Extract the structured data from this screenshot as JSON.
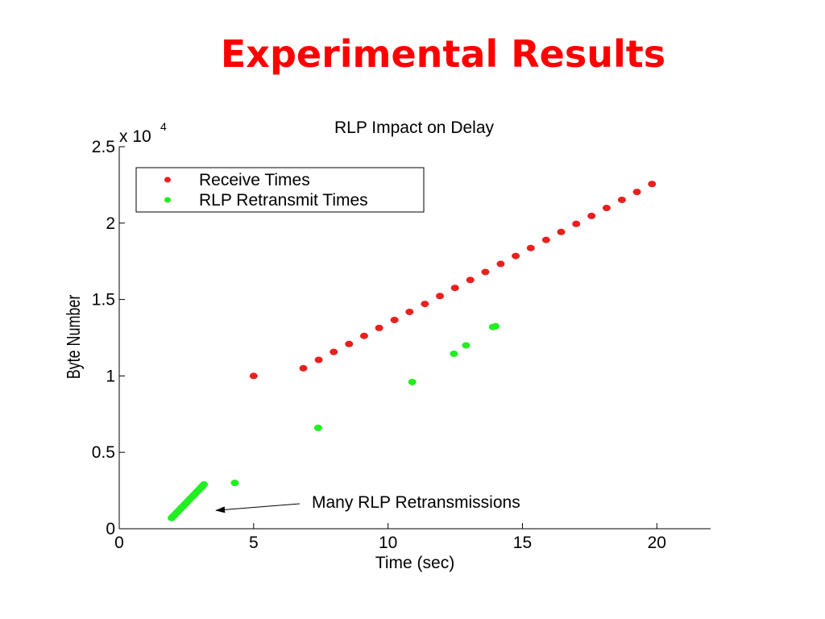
{
  "slide": {
    "title": "Experimental Results"
  },
  "chart_data": {
    "type": "scatter",
    "title": "RLP Impact on Delay",
    "xlabel": "Time (sec)",
    "ylabel": "Byte Number",
    "y_multiplier_label": "x 10",
    "y_multiplier_exponent": "4",
    "xlim": [
      0,
      22
    ],
    "ylim": [
      0,
      2.5
    ],
    "xticks": [
      0,
      5,
      10,
      15,
      20
    ],
    "xtick_labels": [
      "0",
      "5",
      "10",
      "15",
      "20"
    ],
    "yticks": [
      0,
      0.5,
      1,
      1.5,
      2,
      2.5
    ],
    "ytick_labels": [
      "0",
      "0.5",
      "1",
      "1.5",
      "2",
      "2.5"
    ],
    "grid": false,
    "legend_position": "top-left",
    "series": [
      {
        "name": "Receive Times",
        "color": "#e8201e",
        "points": [
          [
            5.0,
            1.0
          ],
          [
            6.85,
            1.05
          ],
          [
            7.42,
            1.105
          ],
          [
            7.98,
            1.157
          ],
          [
            8.55,
            1.209
          ],
          [
            9.11,
            1.262
          ],
          [
            9.67,
            1.314
          ],
          [
            10.24,
            1.366
          ],
          [
            10.8,
            1.419
          ],
          [
            11.37,
            1.471
          ],
          [
            11.93,
            1.523
          ],
          [
            12.49,
            1.576
          ],
          [
            13.06,
            1.628
          ],
          [
            13.62,
            1.68
          ],
          [
            14.19,
            1.733
          ],
          [
            14.75,
            1.785
          ],
          [
            15.31,
            1.837
          ],
          [
            15.88,
            1.89
          ],
          [
            16.44,
            1.942
          ],
          [
            17.0,
            1.995
          ],
          [
            17.57,
            2.047
          ],
          [
            18.13,
            2.099
          ],
          [
            18.7,
            2.152
          ],
          [
            19.26,
            2.204
          ],
          [
            19.82,
            2.256
          ]
        ]
      },
      {
        "name": "RLP Retransmit Times",
        "color": "#22ee22",
        "points": [
          [
            1.95,
            0.07
          ],
          [
            2.0,
            0.08
          ],
          [
            2.06,
            0.09
          ],
          [
            2.11,
            0.1
          ],
          [
            2.17,
            0.11
          ],
          [
            2.22,
            0.12
          ],
          [
            2.28,
            0.13
          ],
          [
            2.33,
            0.14
          ],
          [
            2.39,
            0.15
          ],
          [
            2.44,
            0.16
          ],
          [
            2.5,
            0.17
          ],
          [
            2.55,
            0.18
          ],
          [
            2.61,
            0.19
          ],
          [
            2.66,
            0.2
          ],
          [
            2.72,
            0.21
          ],
          [
            2.77,
            0.22
          ],
          [
            2.83,
            0.23
          ],
          [
            2.88,
            0.24
          ],
          [
            2.94,
            0.25
          ],
          [
            2.99,
            0.26
          ],
          [
            3.05,
            0.27
          ],
          [
            3.1,
            0.28
          ],
          [
            3.15,
            0.29
          ],
          [
            4.3,
            0.3
          ],
          [
            7.4,
            0.66
          ],
          [
            10.9,
            0.96
          ],
          [
            12.45,
            1.145
          ],
          [
            12.9,
            1.2
          ],
          [
            13.9,
            1.32
          ],
          [
            14.0,
            1.325
          ]
        ]
      }
    ],
    "annotations": [
      {
        "text": "Many RLP Retransmissions",
        "arrow_to": [
          3.6,
          0.12
        ]
      }
    ]
  }
}
